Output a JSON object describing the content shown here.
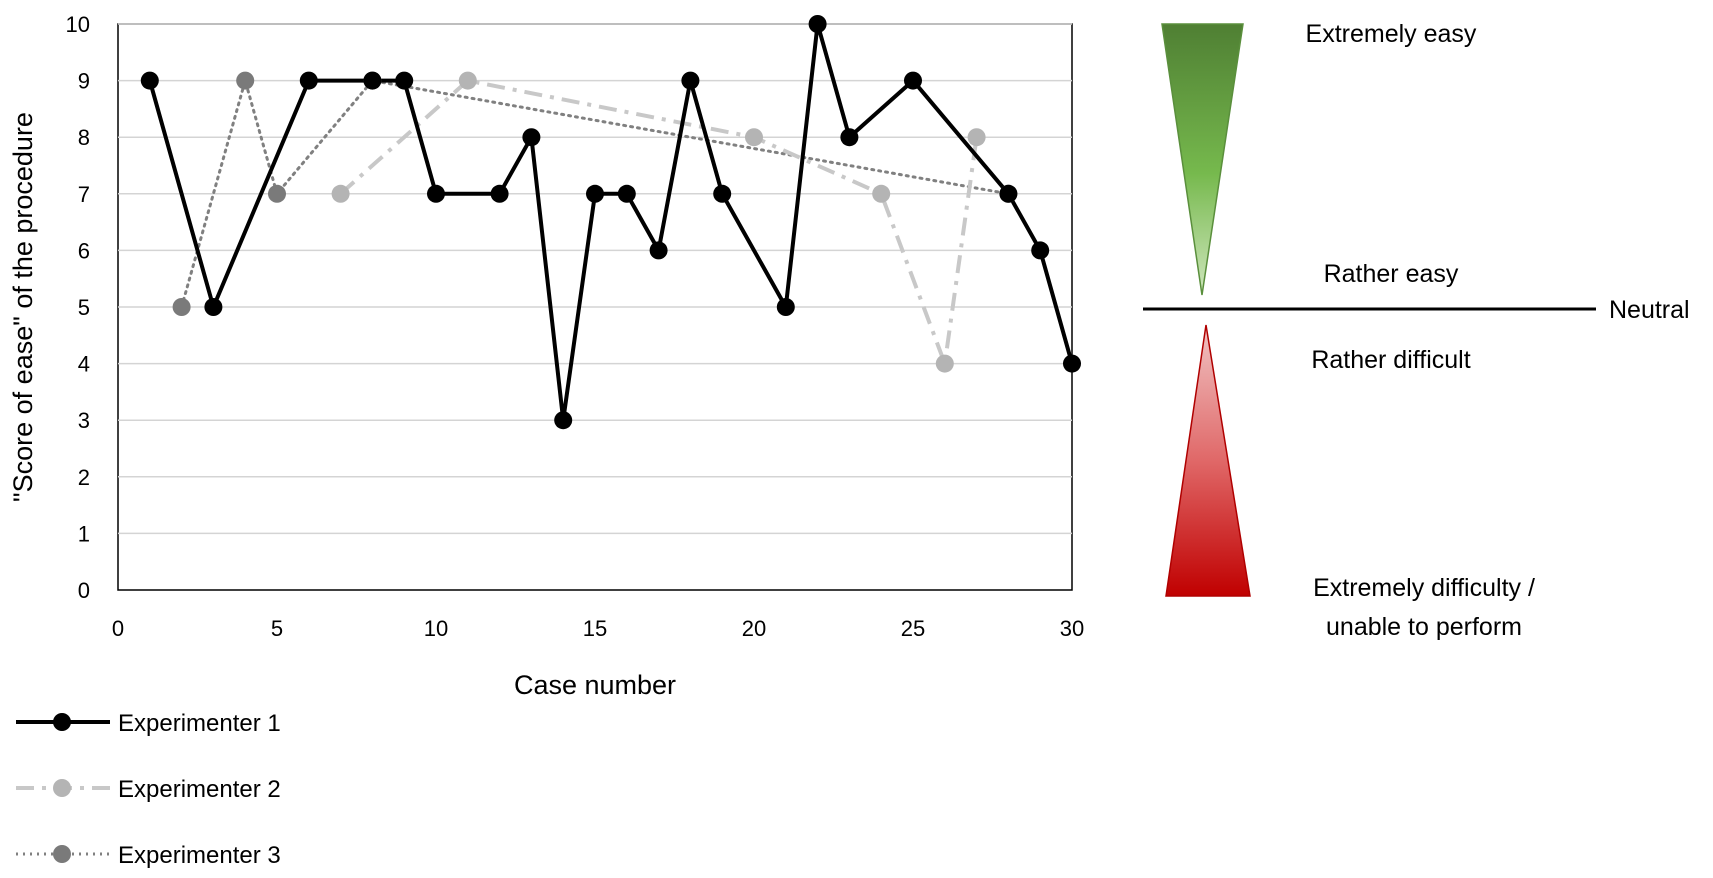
{
  "chart_data": {
    "type": "line",
    "xlabel": "Case number",
    "ylabel": "\"Score of ease\" of the procedure",
    "xlim": [
      0,
      30
    ],
    "ylim": [
      0,
      10
    ],
    "x_ticks": [
      0,
      5,
      10,
      15,
      20,
      25,
      30
    ],
    "y_ticks": [
      0,
      1,
      2,
      3,
      4,
      5,
      6,
      7,
      8,
      9,
      10
    ],
    "grid": "horizontal",
    "legend_position": "bottom-left",
    "series": [
      {
        "name": "Experimenter 1",
        "color": "#000000",
        "line_style": "solid",
        "x": [
          1,
          3,
          6,
          8,
          9,
          10,
          12,
          13,
          14,
          15,
          16,
          17,
          18,
          19,
          21,
          22,
          23,
          25,
          28,
          29,
          30
        ],
        "y": [
          9,
          5,
          9,
          9,
          9,
          7,
          7,
          8,
          3,
          7,
          7,
          6,
          9,
          7,
          5,
          10,
          8,
          9,
          7,
          6,
          4
        ]
      },
      {
        "name": "Experimenter 2",
        "color": "#c8c8c8",
        "marker_color": "#b4b4b4",
        "line_style": "dash-dot",
        "x": [
          7,
          11,
          20,
          24,
          26,
          27
        ],
        "y": [
          7,
          9,
          8,
          7,
          4,
          8
        ]
      },
      {
        "name": "Experimenter 3",
        "color": "#808080",
        "marker_color": "#7a7a7a",
        "line_style": "dotted",
        "x": [
          2,
          4,
          5,
          8,
          28
        ],
        "y": [
          5,
          9,
          7,
          9,
          7
        ]
      }
    ]
  },
  "scale": {
    "top_label": "Extremely easy",
    "upper_mid_label": "Rather easy",
    "neutral_label": "Neutral",
    "lower_mid_label": "Rather difficult",
    "bottom_label_line1": "Extremely difficulty /",
    "bottom_label_line2": "unable to perform",
    "easy_color": "#4f8a2e",
    "difficult_color": "#c00000"
  }
}
